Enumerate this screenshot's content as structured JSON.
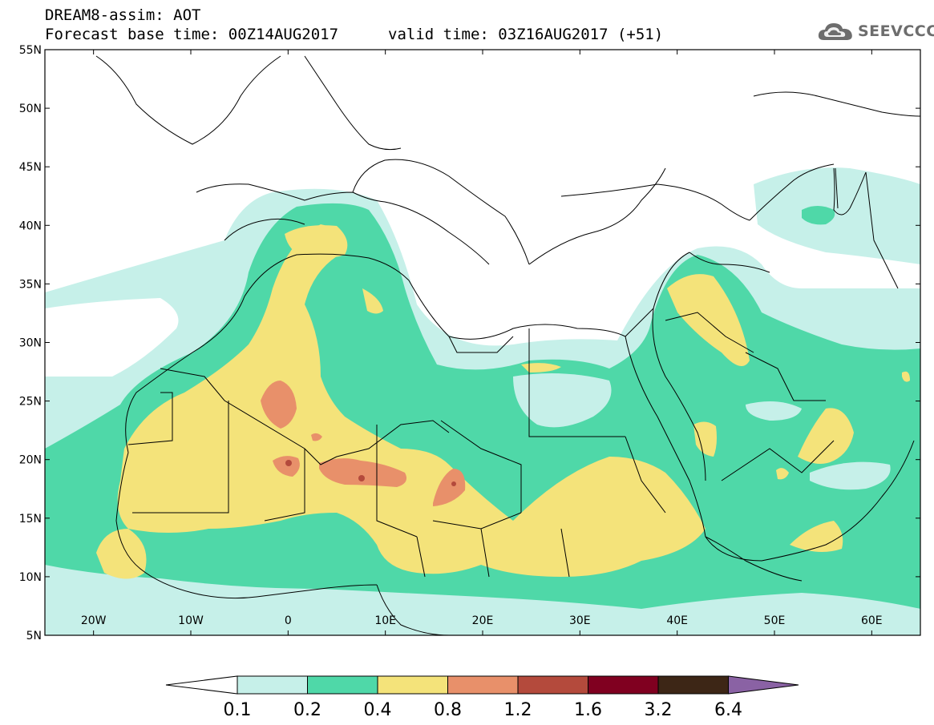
{
  "header": {
    "title": "DREAM8-assim: AOT",
    "base_time": "Forecast base time: 00Z14AUG2017",
    "valid_time": "valid time: 03Z16AUG2017 (+51)"
  },
  "logo": {
    "text": "SEEVCCC",
    "icon": "cloud-icon"
  },
  "map": {
    "lat_labels": [
      "55N",
      "50N",
      "45N",
      "40N",
      "35N",
      "30N",
      "25N",
      "20N",
      "15N",
      "10N",
      "5N"
    ],
    "lon_labels": [
      "20W",
      "10W",
      "0",
      "10E",
      "20E",
      "30E",
      "40E",
      "50E",
      "60E"
    ],
    "extent": {
      "lon_min": -25,
      "lon_max": 65,
      "lat_min": 5,
      "lat_max": 55
    }
  },
  "colorbar": {
    "labels": [
      "0.1",
      "0.2",
      "0.4",
      "0.8",
      "1.2",
      "1.6",
      "3.2",
      "6.4"
    ],
    "colors": [
      "#ffffff",
      "#c6f0e9",
      "#4fd8a8",
      "#f4e37a",
      "#e8906a",
      "#b44a3c",
      "#800020",
      "#3d2616",
      "#8a62a4"
    ]
  },
  "palette": {
    "c01": "#c6f0e9",
    "c02": "#4fd8a8",
    "c04": "#f4e37a",
    "c08": "#e8906a",
    "c12": "#b44a3c",
    "c16": "#800020",
    "ocean": "#ffffff",
    "land_line": "#000000"
  }
}
